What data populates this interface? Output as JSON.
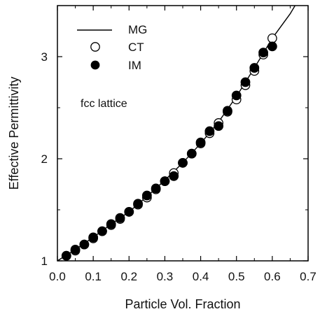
{
  "chart_data": {
    "type": "scatter",
    "xlabel": "Particle Vol. Fraction",
    "ylabel": "Effective Permittivity",
    "xlim": [
      0.0,
      0.7
    ],
    "ylim": [
      1.0,
      3.5
    ],
    "xticks": [
      "0.0",
      "0.1",
      "0.2",
      "0.3",
      "0.4",
      "0.5",
      "0.6",
      "0.7"
    ],
    "yticks": [
      "1",
      "2",
      "3"
    ],
    "grid": false,
    "legend_placement": "top-left",
    "annotation": "fcc lattice",
    "series": [
      {
        "name": "MG",
        "style": "line",
        "color": "#000000",
        "x": [
          0.0,
          0.05,
          0.1,
          0.15,
          0.2,
          0.25,
          0.3,
          0.35,
          0.4,
          0.45,
          0.5,
          0.55,
          0.6,
          0.65,
          0.667
        ],
        "y": [
          1.0,
          1.11,
          1.23,
          1.36,
          1.48,
          1.63,
          1.79,
          1.96,
          2.15,
          2.36,
          2.61,
          2.89,
          3.18,
          3.42,
          3.52
        ]
      },
      {
        "name": "CT",
        "style": "open-circle",
        "color": "#000000",
        "x": [
          0.025,
          0.05,
          0.075,
          0.1,
          0.125,
          0.15,
          0.175,
          0.2,
          0.225,
          0.25,
          0.275,
          0.3,
          0.325,
          0.35,
          0.375,
          0.4,
          0.425,
          0.45,
          0.475,
          0.5,
          0.525,
          0.55,
          0.575,
          0.6
        ],
        "y": [
          1.05,
          1.1,
          1.16,
          1.22,
          1.29,
          1.35,
          1.41,
          1.48,
          1.55,
          1.62,
          1.7,
          1.78,
          1.86,
          1.96,
          2.05,
          2.15,
          2.25,
          2.35,
          2.46,
          2.58,
          2.72,
          2.86,
          3.02,
          3.18
        ]
      },
      {
        "name": "IM",
        "style": "filled-circle",
        "color": "#000000",
        "x": [
          0.025,
          0.05,
          0.075,
          0.1,
          0.125,
          0.15,
          0.175,
          0.2,
          0.225,
          0.25,
          0.275,
          0.3,
          0.325,
          0.35,
          0.375,
          0.4,
          0.425,
          0.45,
          0.475,
          0.5,
          0.525,
          0.55,
          0.575,
          0.6
        ],
        "y": [
          1.05,
          1.11,
          1.16,
          1.23,
          1.29,
          1.36,
          1.42,
          1.48,
          1.56,
          1.64,
          1.71,
          1.78,
          1.83,
          1.96,
          2.05,
          2.16,
          2.27,
          2.32,
          2.47,
          2.62,
          2.75,
          2.89,
          3.04,
          3.1
        ]
      }
    ]
  }
}
